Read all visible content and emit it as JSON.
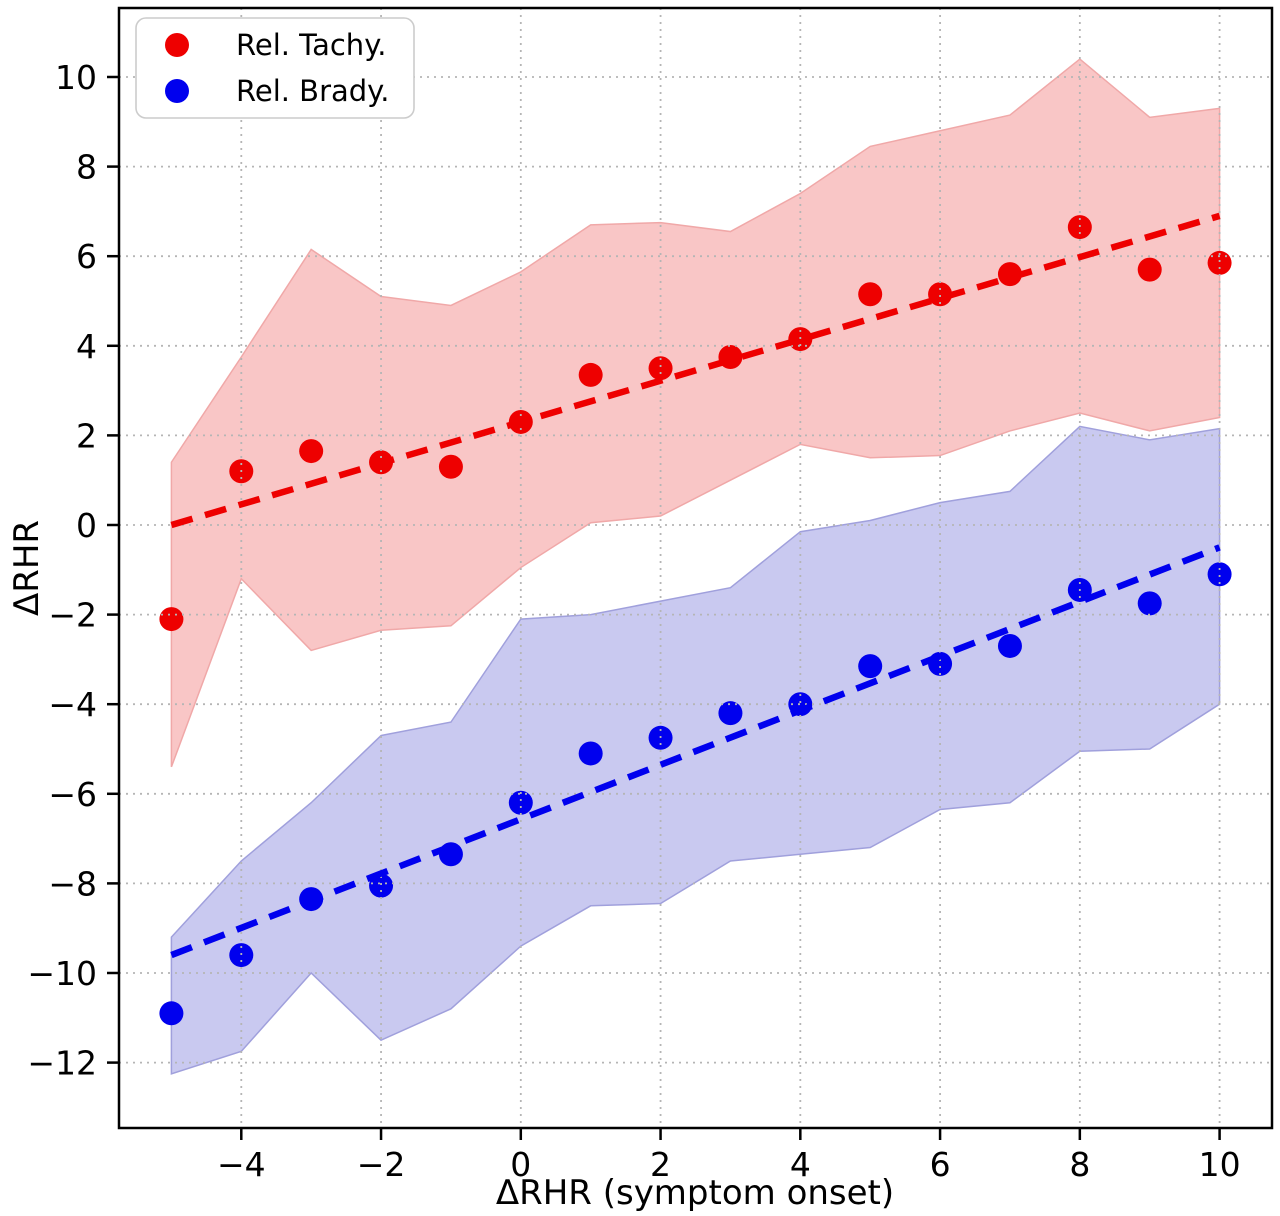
{
  "chart_data": {
    "type": "scatter",
    "title": "",
    "xlabel": "ΔRHR (symptom onset)",
    "ylabel": "ΔRHR",
    "xlim": [
      -5.75,
      10.75
    ],
    "ylim": [
      -13.46,
      11.54
    ],
    "grid": "dotted",
    "grid_color": "#b5b5b5",
    "legend_position": "upper left",
    "x": [
      -5,
      -4,
      -3,
      -2,
      -1,
      0,
      1,
      2,
      3,
      4,
      5,
      6,
      7,
      8,
      9,
      10
    ],
    "x_ticks": {
      "values": [
        -4,
        -2,
        0,
        2,
        4,
        6,
        8,
        10
      ],
      "labels": [
        "−4",
        "−2",
        "0",
        "2",
        "4",
        "6",
        "8",
        "10"
      ]
    },
    "y_ticks": {
      "values": [
        10,
        8,
        6,
        4,
        2,
        0,
        -2,
        -4,
        -6,
        -8,
        -10,
        -12
      ],
      "labels": [
        "10",
        "8",
        "6",
        "4",
        "2",
        "0",
        "−2",
        "−4",
        "−6",
        "−8",
        "−10",
        "−12"
      ]
    },
    "series": [
      {
        "name": "Rel. Tachy.",
        "color": "#ee0000",
        "band_color": "#f9c6c6",
        "band_edge_color": "#f0a8a8",
        "points": [
          -2.1,
          1.2,
          1.65,
          1.4,
          1.3,
          2.3,
          3.35,
          3.5,
          3.75,
          4.15,
          5.15,
          5.15,
          5.6,
          6.65,
          5.7,
          5.85
        ],
        "band_upper": [
          1.4,
          3.75,
          6.15,
          5.1,
          4.9,
          5.65,
          6.7,
          6.75,
          6.55,
          7.4,
          8.45,
          8.8,
          9.15,
          10.4,
          9.1,
          9.3
        ],
        "band_lower": [
          -5.4,
          -1.2,
          -2.8,
          -2.35,
          -2.25,
          -0.95,
          0.05,
          0.2,
          1.0,
          1.8,
          1.5,
          1.55,
          2.1,
          2.5,
          2.1,
          2.4
        ],
        "trend": {
          "style": "dashed",
          "x0": -5,
          "y0": 0.0,
          "x1": 10,
          "y1": 6.9
        }
      },
      {
        "name": "Rel. Brady.",
        "color": "#0000ee",
        "band_color": "#c9c9f0",
        "band_edge_color": "#a0a0dc",
        "points": [
          -10.9,
          -9.6,
          -8.35,
          -8.05,
          -7.35,
          -6.2,
          -5.1,
          -4.75,
          -4.2,
          -4.0,
          -3.15,
          -3.1,
          -2.7,
          -1.45,
          -1.75,
          -1.1
        ],
        "band_upper": [
          -9.2,
          -7.5,
          -6.2,
          -4.7,
          -4.4,
          -2.1,
          -2.0,
          -1.7,
          -1.4,
          -0.15,
          0.1,
          0.5,
          0.75,
          2.2,
          1.9,
          2.15
        ],
        "band_lower": [
          -12.25,
          -11.75,
          -10.0,
          -11.5,
          -10.8,
          -9.4,
          -8.5,
          -8.45,
          -7.5,
          -7.35,
          -7.2,
          -6.35,
          -6.2,
          -5.05,
          -5.0,
          -4.0
        ],
        "trend": {
          "style": "dashed",
          "x0": -5,
          "y0": -9.6,
          "x1": 10,
          "y1": -0.5
        }
      }
    ]
  },
  "legend": {
    "items": [
      {
        "label": "Rel. Tachy."
      },
      {
        "label": "Rel. Brady."
      }
    ]
  }
}
